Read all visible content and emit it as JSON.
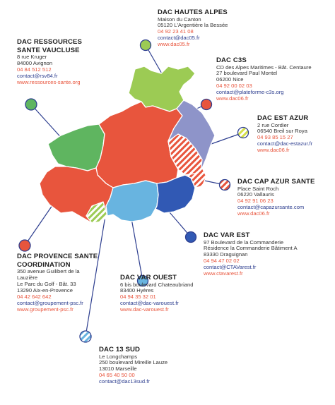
{
  "colors": {
    "red": "#e8553d",
    "green": "#9ccb54",
    "mid_green": "#5fb560",
    "light_blue": "#68b4e0",
    "dark_blue": "#3159b4",
    "lavender": "#8e94c9",
    "yellow_green": "#d5df4b",
    "line_navy": "#2d3e8f"
  },
  "dacs": [
    {
      "key": "vaucluse",
      "title_lines": [
        "DAC RESSOURCES",
        "SANTE VAUCLUSE"
      ],
      "lines": [
        "8 rue Kruger",
        "84000 Avignon"
      ],
      "phone": "04 84 512 512",
      "email": "contact@rsv84.fr",
      "web": "www.ressources-sante.org"
    },
    {
      "key": "hautes-alpes",
      "title_lines": [
        "DAC HAUTES ALPES"
      ],
      "lines": [
        "Maison du Canton",
        "05120 L'Argentière la Bessée"
      ],
      "phone": "04 92 23 41 08",
      "email": "contact@dac05.fr",
      "web": "www.dac05.fr"
    },
    {
      "key": "c3s",
      "title_lines": [
        "DAC C3S"
      ],
      "lines": [
        "CD des Alpes Maritimes - Bât. Centaure",
        "27 boulevard Paul Montel",
        "06200 Nice"
      ],
      "phone": "04 92 00 02 03",
      "email": "contact@plateforme-c3s.org",
      "web": "www.dac06.fr"
    },
    {
      "key": "est-azur",
      "title_lines": [
        "DAC EST AZUR"
      ],
      "lines": [
        "2 rue Cordier",
        "06540 Breil sur Roya"
      ],
      "phone": "04 93 85 15 27",
      "email": "contact@dac-estazur.fr",
      "web": "www.dac06.fr"
    },
    {
      "key": "cap-azur",
      "title_lines": [
        "DAC CAP AZUR SANTE"
      ],
      "lines": [
        "Place Saint Roch",
        "06220 Vallauris"
      ],
      "phone": "04 92 91 06 23",
      "email": "contact@capazursante.com",
      "web": "www.dac06.fr"
    },
    {
      "key": "var-est",
      "title_lines": [
        "DAC VAR EST"
      ],
      "lines": [
        "97 Boulevard de la Commanderie",
        "Résidence la Commanderie Bâtiment A",
        "83330 Draguignan"
      ],
      "phone": "04 94 47 02 02",
      "email": "contact@CTAVarest.fr",
      "web": "www.ctavarest.fr"
    },
    {
      "key": "provence",
      "title_lines": [
        "DAC PROVENCE SANTE",
        "COORDINATION"
      ],
      "lines": [
        "350 avenue Guilibert de la",
        "Lauzière",
        "Le Parc du Golf - Bât. 33",
        "13290 Aix-en-Provence"
      ],
      "phone": "04 42 642 642",
      "email": "contact@groupement-psc.fr",
      "web": "www.groupement-psc.fr"
    },
    {
      "key": "var-ouest",
      "title_lines": [
        "DAC VAR OUEST"
      ],
      "lines": [
        "6 bis boulevard Chateaubriand",
        "83400 Hyères"
      ],
      "phone": "04 94 35 32 01",
      "email": "contact@dac-varouest.fr",
      "web": "www.dac-varouest.fr"
    },
    {
      "key": "13-sud",
      "title_lines": [
        "DAC 13 SUD"
      ],
      "lines": [
        "Le Longchamps",
        "250 boulevard Mireille Lauze",
        "13010 Marseille"
      ],
      "phone": "04 65 40 50 00",
      "email": "contact@dac13sud.fr"
    }
  ]
}
